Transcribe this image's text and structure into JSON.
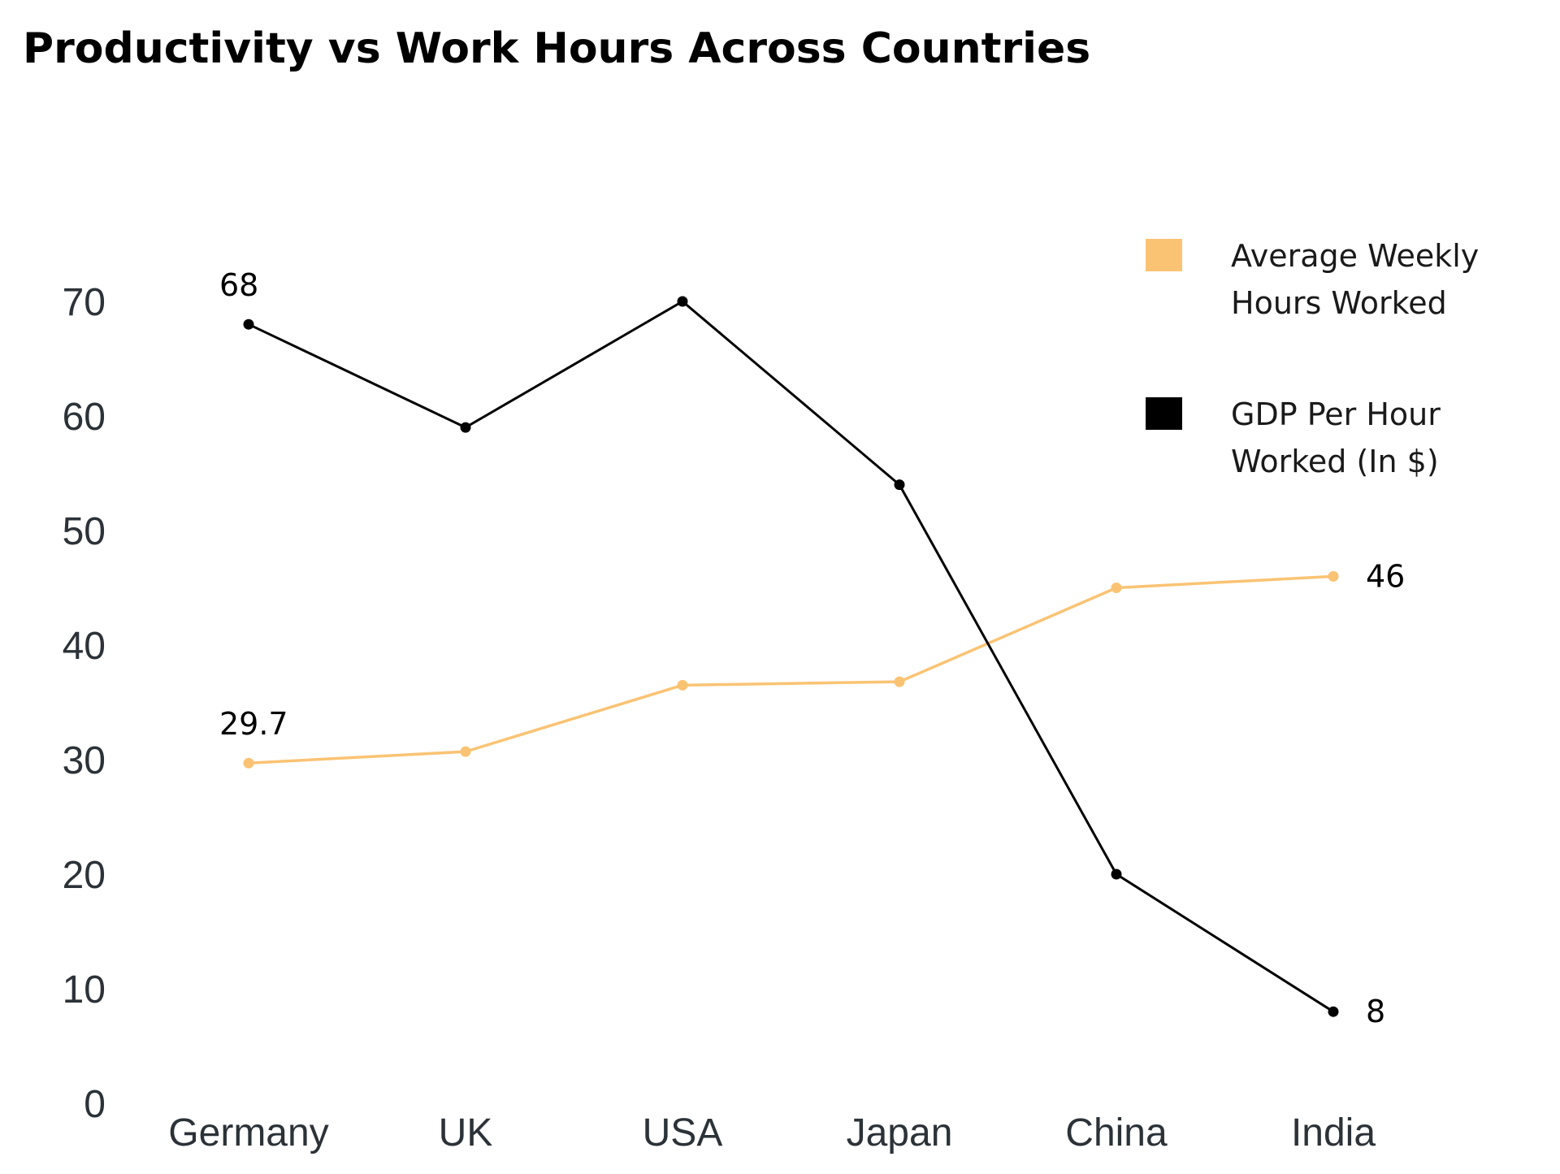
{
  "chart_data": {
    "type": "line",
    "title": "Productivity vs Work Hours Across Countries",
    "xlabel": "",
    "ylabel": "",
    "categories": [
      "Germany",
      "UK",
      "USA",
      "Japan",
      "China",
      "India"
    ],
    "ylim": [
      0,
      70
    ],
    "yticks": [
      "0",
      "10",
      "20",
      "30",
      "40",
      "50",
      "60",
      "70"
    ],
    "grid": false,
    "legend_position": "top-right",
    "series": [
      {
        "name": "Average Weekly Hours Worked",
        "legend_lines": [
          "Average Weekly",
          "Hours Worked"
        ],
        "color": "#FAC373",
        "values": [
          29.7,
          30.7,
          36.5,
          36.8,
          45,
          46
        ],
        "labels": [
          {
            "index": 0,
            "text": "29.7",
            "placement": "above"
          },
          {
            "index": 5,
            "text": "46",
            "placement": "right"
          }
        ]
      },
      {
        "name": "GDP Per Hour Worked (In $)",
        "legend_lines": [
          "GDP Per Hour",
          "Worked (In $)"
        ],
        "color": "#000000",
        "values": [
          68,
          59,
          70,
          54,
          20,
          8
        ],
        "labels": [
          {
            "index": 0,
            "text": "68",
            "placement": "above"
          },
          {
            "index": 5,
            "text": "8",
            "placement": "right"
          }
        ]
      }
    ]
  }
}
